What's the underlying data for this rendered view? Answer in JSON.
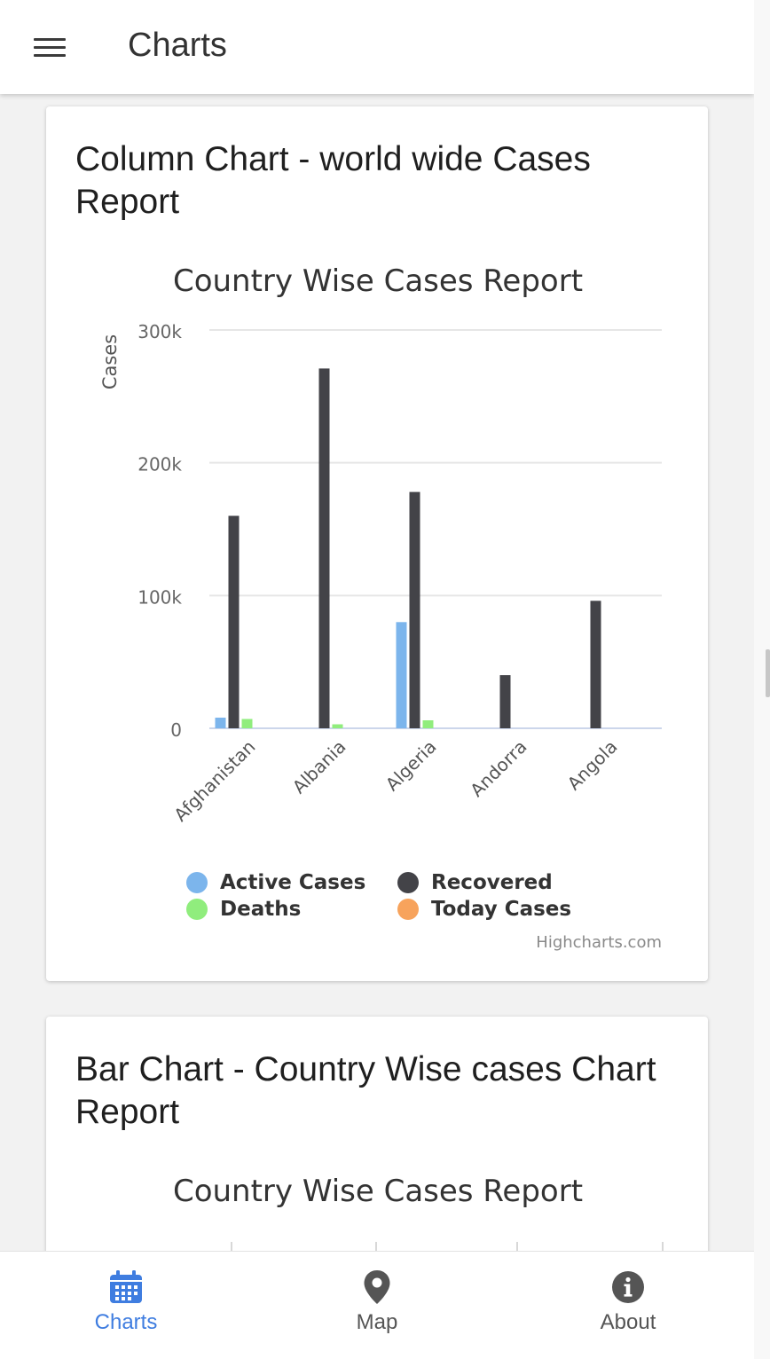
{
  "app_bar": {
    "title": "Charts",
    "menu_icon": "hamburger-menu-icon"
  },
  "cards": [
    {
      "title": "Column Chart - world wide Cases Report",
      "chart_data": {
        "type": "bar",
        "title": "Country Wise Cases Report",
        "ylabel": "Cases",
        "ylim": [
          0,
          300000
        ],
        "ytick_labels": [
          "0",
          "100k",
          "200k",
          "300k"
        ],
        "categories": [
          "Afghanistan",
          "Albania",
          "Algeria",
          "Andorra",
          "Angola"
        ],
        "series": [
          {
            "name": "Active Cases",
            "color": "#7cb5ec",
            "values": [
              8000,
              0,
              80000,
              0,
              0
            ]
          },
          {
            "name": "Recovered",
            "color": "#434348",
            "values": [
              160000,
              271000,
              178000,
              40000,
              96000
            ]
          },
          {
            "name": "Deaths",
            "color": "#90ed7d",
            "values": [
              7000,
              3000,
              6000,
              0,
              0
            ]
          },
          {
            "name": "Today Cases",
            "color": "#f7a35c",
            "values": [
              0,
              0,
              0,
              0,
              0
            ]
          }
        ],
        "grid": true,
        "legend_position": "bottom",
        "credits": "Highcharts.com"
      }
    },
    {
      "title": "Bar Chart - Country Wise cases Chart Report",
      "chart_title": "Country Wise Cases Report"
    }
  ],
  "bottom_nav": {
    "items": [
      {
        "label": "Charts",
        "icon": "calendar-icon",
        "active": true
      },
      {
        "label": "Map",
        "icon": "map-pin-icon",
        "active": false
      },
      {
        "label": "About",
        "icon": "info-icon",
        "active": false
      }
    ],
    "active_color": "#3f7de0",
    "inactive_color": "#555555"
  }
}
